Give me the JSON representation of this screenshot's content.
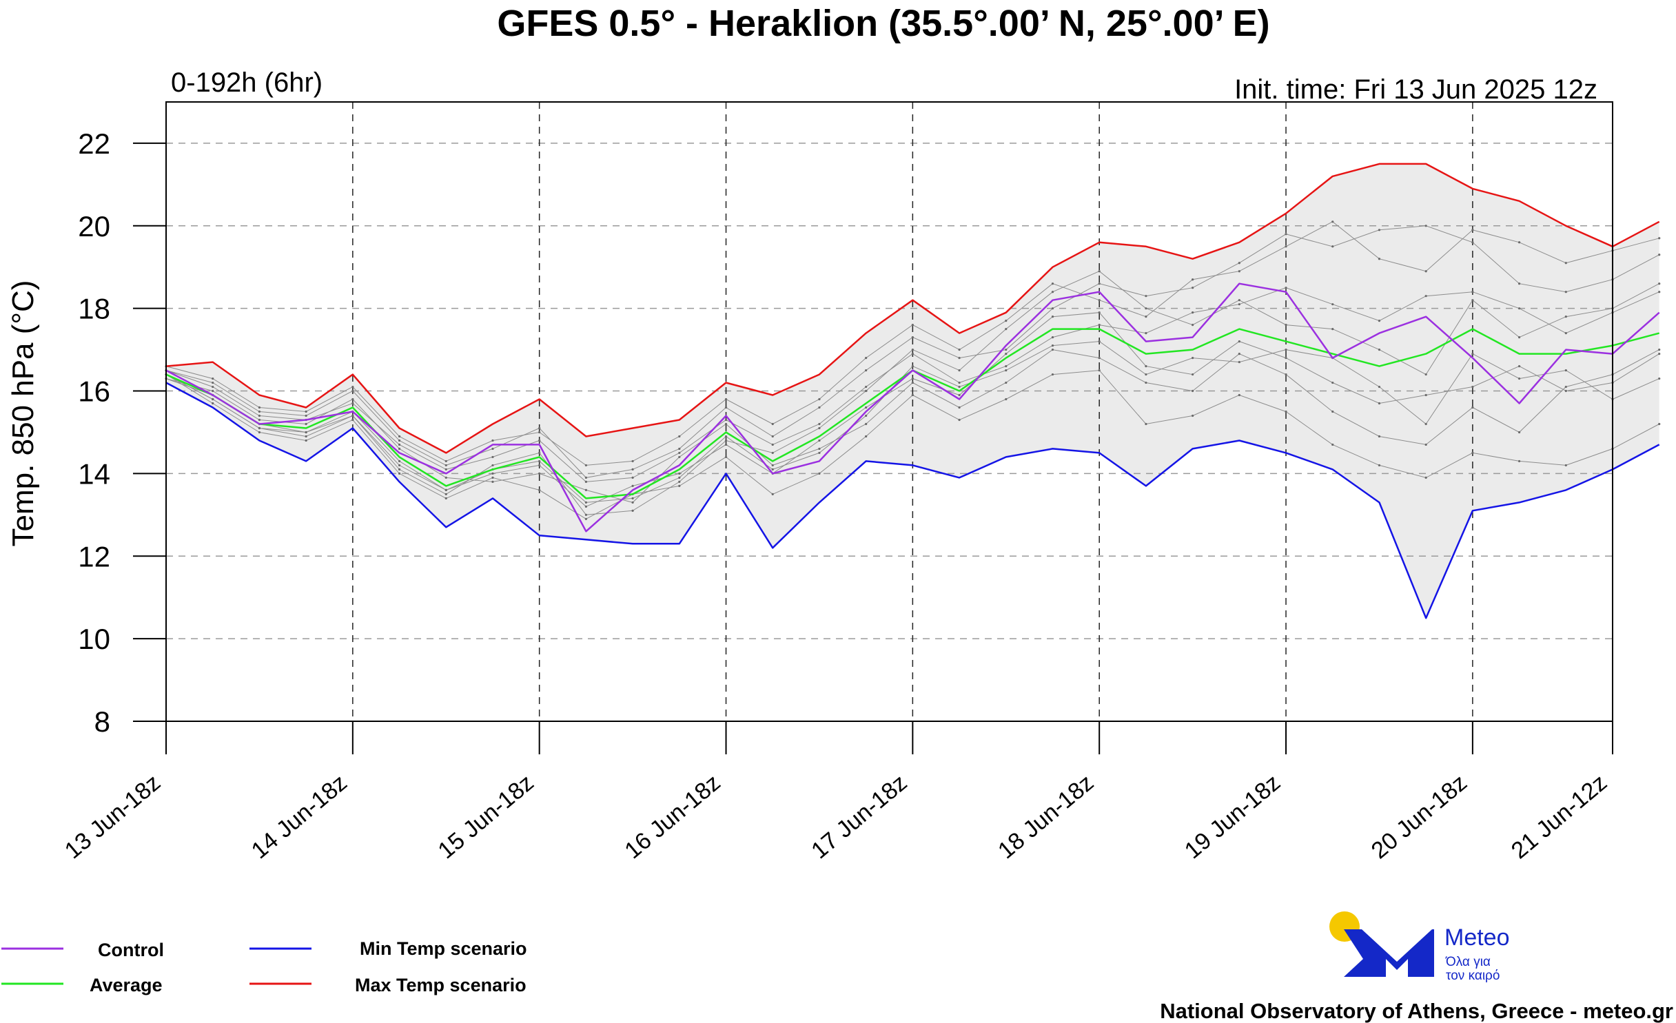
{
  "header": {
    "title": "GFES 0.5° - Heraklion (35.5°.00’ N, 25°.00’ E)",
    "range_label": "0-192h (6hr)",
    "init_time": "Init. time: Fri 13 Jun 2025 12z"
  },
  "chart_data": {
    "type": "line",
    "ylabel": "Temp. 850 hPa (°C)",
    "ylim": [
      8,
      23
    ],
    "yticks": [
      8,
      10,
      12,
      14,
      16,
      18,
      20,
      22
    ],
    "x_steps_hours": 6,
    "x_range_hours": [
      6,
      192
    ],
    "xticks": [
      {
        "hour": 6,
        "label": "13 Jun-18z"
      },
      {
        "hour": 30,
        "label": "14 Jun-18z"
      },
      {
        "hour": 54,
        "label": "15 Jun-18z"
      },
      {
        "hour": 78,
        "label": "16 Jun-18z"
      },
      {
        "hour": 102,
        "label": "17 Jun-18z"
      },
      {
        "hour": 126,
        "label": "18 Jun-18z"
      },
      {
        "hour": 150,
        "label": "19 Jun-18z"
      },
      {
        "hour": 174,
        "label": "20 Jun-18z"
      },
      {
        "hour": 192,
        "label": "21 Jun-12z"
      }
    ],
    "grid": true,
    "series": [
      {
        "name": "Control",
        "color": "#9b30e0",
        "values": [
          16.5,
          15.9,
          15.2,
          15.3,
          15.5,
          14.5,
          14.0,
          14.7,
          14.7,
          12.6,
          13.6,
          14.2,
          15.4,
          14.0,
          14.3,
          15.5,
          16.5,
          15.8,
          17.1,
          18.2,
          18.4,
          17.2,
          17.3,
          18.6,
          18.4,
          16.8,
          17.4,
          17.8,
          16.8,
          15.7,
          17.0,
          16.9,
          17.9
        ]
      },
      {
        "name": "Average",
        "color": "#22e622",
        "values": [
          16.4,
          15.9,
          15.2,
          15.1,
          15.6,
          14.4,
          13.7,
          14.1,
          14.4,
          13.4,
          13.5,
          14.1,
          15.0,
          14.3,
          14.9,
          15.7,
          16.5,
          16.0,
          16.8,
          17.5,
          17.5,
          16.9,
          17.0,
          17.5,
          17.2,
          16.9,
          16.6,
          16.9,
          17.5,
          16.9,
          16.9,
          17.1,
          17.4
        ]
      },
      {
        "name": "Min Temp scenario",
        "color": "#1414e6",
        "values": [
          16.2,
          15.6,
          14.8,
          14.3,
          15.1,
          13.8,
          12.7,
          13.4,
          12.5,
          12.4,
          12.3,
          12.3,
          14.0,
          12.2,
          13.3,
          14.3,
          14.2,
          13.9,
          14.4,
          14.6,
          14.5,
          13.7,
          14.6,
          14.8,
          14.5,
          14.1,
          13.3,
          10.5,
          13.1,
          13.3,
          13.6,
          14.1,
          14.7
        ]
      },
      {
        "name": "Max Temp scenario",
        "color": "#e61414",
        "values": [
          16.6,
          16.7,
          15.9,
          15.6,
          16.4,
          15.1,
          14.5,
          15.2,
          15.8,
          14.9,
          15.1,
          15.3,
          16.2,
          15.9,
          16.4,
          17.4,
          18.2,
          17.4,
          17.9,
          19.0,
          19.6,
          19.5,
          19.2,
          19.6,
          20.3,
          21.2,
          21.5,
          21.5,
          20.9,
          20.6,
          20.0,
          19.5,
          20.1
        ]
      }
    ],
    "ensemble_members": [
      [
        16.4,
        15.8,
        15.1,
        14.9,
        15.4,
        14.1,
        13.5,
        14.2,
        14.5,
        13.0,
        13.1,
        13.8,
        14.8,
        14.5,
        15.1,
        16.0,
        17.0,
        16.5,
        17.5,
        18.4,
        18.9,
        18.0,
        17.6,
        18.2,
        17.6,
        17.5,
        17.0,
        16.4,
        18.2,
        17.3,
        17.8,
        18.0,
        18.6
      ],
      [
        16.3,
        16.0,
        15.3,
        15.2,
        15.8,
        14.6,
        13.9,
        13.8,
        14.0,
        13.6,
        13.3,
        14.4,
        15.2,
        14.2,
        14.6,
        15.2,
        16.2,
        15.6,
        16.2,
        17.0,
        16.8,
        16.2,
        16.0,
        16.9,
        16.4,
        15.5,
        14.9,
        14.7,
        15.6,
        15.0,
        16.1,
        16.4,
        17.0
      ],
      [
        16.5,
        16.2,
        15.5,
        15.4,
        16.0,
        14.8,
        14.2,
        14.6,
        15.1,
        13.9,
        14.1,
        14.6,
        15.6,
        14.9,
        15.6,
        16.5,
        17.3,
        16.8,
        17.0,
        18.0,
        18.6,
        18.3,
        18.5,
        19.1,
        19.8,
        19.5,
        19.9,
        20.0,
        19.6,
        18.6,
        18.4,
        18.7,
        19.3
      ],
      [
        16.4,
        15.7,
        15.0,
        14.8,
        15.3,
        14.0,
        13.4,
        13.9,
        13.6,
        12.9,
        13.5,
        13.7,
        14.4,
        13.5,
        14.0,
        14.9,
        15.9,
        15.3,
        15.8,
        16.4,
        16.5,
        15.2,
        15.4,
        15.9,
        15.5,
        14.7,
        14.2,
        13.9,
        14.5,
        14.3,
        14.2,
        14.6,
        15.2
      ],
      [
        16.5,
        16.1,
        15.4,
        15.3,
        15.7,
        14.7,
        14.1,
        14.4,
        14.8,
        13.8,
        13.9,
        14.5,
        15.3,
        14.7,
        15.2,
        16.1,
        16.9,
        16.2,
        16.6,
        17.3,
        17.6,
        17.4,
        17.9,
        18.1,
        18.5,
        18.1,
        17.7,
        18.3,
        18.4,
        18.0,
        17.4,
        17.9,
        18.4
      ],
      [
        16.3,
        15.9,
        15.2,
        15.0,
        15.5,
        14.3,
        13.6,
        14.0,
        14.2,
        13.2,
        13.7,
        14.0,
        14.7,
        14.0,
        14.8,
        15.6,
        16.3,
        15.9,
        16.9,
        17.8,
        17.9,
        16.6,
        16.4,
        17.2,
        16.8,
        16.2,
        15.7,
        15.9,
        16.1,
        16.6,
        16.0,
        16.2,
        16.9
      ],
      [
        16.6,
        16.3,
        15.6,
        15.5,
        16.1,
        14.9,
        14.3,
        14.8,
        15.0,
        14.2,
        14.3,
        14.9,
        15.8,
        15.2,
        15.8,
        16.8,
        17.6,
        17.0,
        17.7,
        18.6,
        18.2,
        17.8,
        18.7,
        18.9,
        19.5,
        20.1,
        19.2,
        18.9,
        19.9,
        19.6,
        19.1,
        19.4,
        19.7
      ],
      [
        16.4,
        15.8,
        15.1,
        15.0,
        15.4,
        14.2,
        13.6,
        14.1,
        14.3,
        13.3,
        13.4,
        13.9,
        14.9,
        14.1,
        14.5,
        15.4,
        16.6,
        16.1,
        16.5,
        17.1,
        17.2,
        16.4,
        16.8,
        16.7,
        17.0,
        16.8,
        16.1,
        15.2,
        16.9,
        16.3,
        16.5,
        15.8,
        16.3
      ]
    ]
  },
  "legend": {
    "items": [
      {
        "label": "Control",
        "color": "#9b30e0"
      },
      {
        "label": "Average",
        "color": "#22e622"
      },
      {
        "label": "Min Temp scenario",
        "color": "#1414e6"
      },
      {
        "label": "Max Temp scenario",
        "color": "#e61414"
      }
    ]
  },
  "branding": {
    "logo_name": "Meteo",
    "tagline_line1": "Όλα για",
    "tagline_line2": "τον καιρό",
    "footer": "National Observatory of Athens, Greece - meteo.gr",
    "logo_blue": "#1428c8",
    "logo_sun": "#f5c800"
  }
}
